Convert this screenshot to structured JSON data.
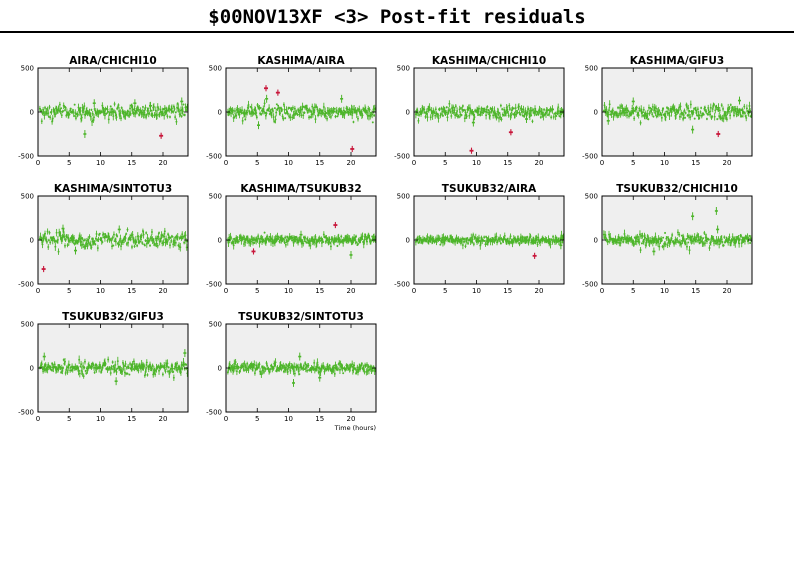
{
  "page": {
    "title": "$00NOV13XF <3> Post-fit residuals",
    "xaxis_label": "Time (hours)"
  },
  "colors": {
    "points": "#4db52a",
    "outliers": "#c8163a",
    "panel_bg": "#efefef",
    "frame": "#000000"
  },
  "chart_data": [
    {
      "type": "scatter",
      "title": "AIRA/CHICHI10",
      "xlim": [
        0,
        24
      ],
      "ylim": [
        -500,
        500
      ],
      "xticks": [
        0,
        5,
        10,
        15,
        20
      ],
      "yticks": [
        -500,
        0,
        500
      ],
      "noise_sigma": 40,
      "bursts": [
        {
          "x": 7.5,
          "y": -250
        },
        {
          "x": 9,
          "y": 100
        },
        {
          "x": 15.5,
          "y": 100
        },
        {
          "x": 18,
          "y": 70
        },
        {
          "x": 23,
          "y": 120
        }
      ],
      "outliers": [
        {
          "x": 19.7,
          "y": -270
        }
      ]
    },
    {
      "type": "scatter",
      "title": "KASHIMA/AIRA",
      "xlim": [
        0,
        24
      ],
      "ylim": [
        -500,
        500
      ],
      "xticks": [
        0,
        5,
        10,
        15,
        20
      ],
      "yticks": [
        -500,
        0,
        500
      ],
      "noise_sigma": 35,
      "bursts": [
        {
          "x": 5.2,
          "y": -150
        },
        {
          "x": 6.5,
          "y": 150
        },
        {
          "x": 18.5,
          "y": 150
        }
      ],
      "outliers": [
        {
          "x": 6.4,
          "y": 270
        },
        {
          "x": 8.3,
          "y": 220
        },
        {
          "x": 20.2,
          "y": -420
        }
      ]
    },
    {
      "type": "scatter",
      "title": "KASHIMA/CHICHI10",
      "xlim": [
        0,
        24
      ],
      "ylim": [
        -500,
        500
      ],
      "xticks": [
        0,
        5,
        10,
        15,
        20
      ],
      "yticks": [
        -500,
        0,
        500
      ],
      "noise_sigma": 35,
      "bursts": [
        {
          "x": 9.5,
          "y": -120
        },
        {
          "x": 18,
          "y": -80
        }
      ],
      "outliers": [
        {
          "x": 9.2,
          "y": -440
        },
        {
          "x": 15.5,
          "y": -230
        }
      ]
    },
    {
      "type": "scatter",
      "title": "KASHIMA/GIFU3",
      "xlim": [
        0,
        24
      ],
      "ylim": [
        -500,
        500
      ],
      "xticks": [
        0,
        5,
        10,
        15,
        20
      ],
      "yticks": [
        -500,
        0,
        500
      ],
      "noise_sigma": 40,
      "bursts": [
        {
          "x": 1,
          "y": -100
        },
        {
          "x": 5,
          "y": 120
        },
        {
          "x": 14.5,
          "y": -200
        },
        {
          "x": 22,
          "y": 130
        }
      ],
      "outliers": [
        {
          "x": 18.6,
          "y": -250
        }
      ]
    },
    {
      "type": "scatter",
      "title": "KASHIMA/SINTOTU3",
      "xlim": [
        0,
        24
      ],
      "ylim": [
        -500,
        500
      ],
      "xticks": [
        0,
        5,
        10,
        15,
        20
      ],
      "yticks": [
        -500,
        0,
        500
      ],
      "noise_sigma": 45,
      "bursts": [
        {
          "x": 4,
          "y": 130
        },
        {
          "x": 6,
          "y": -120
        },
        {
          "x": 13,
          "y": 120
        }
      ],
      "outliers": [
        {
          "x": 0.9,
          "y": -330
        }
      ]
    },
    {
      "type": "scatter",
      "title": "KASHIMA/TSUKUB32",
      "xlim": [
        0,
        24
      ],
      "ylim": [
        -500,
        500
      ],
      "xticks": [
        0,
        5,
        10,
        15,
        20
      ],
      "yticks": [
        -500,
        0,
        500
      ],
      "noise_sigma": 25,
      "bursts": [
        {
          "x": 12,
          "y": 60
        },
        {
          "x": 20,
          "y": -170
        }
      ],
      "outliers": [
        {
          "x": 4.4,
          "y": -130
        },
        {
          "x": 17.5,
          "y": 170
        }
      ]
    },
    {
      "type": "scatter",
      "title": "TSUKUB32/AIRA",
      "xlim": [
        0,
        24
      ],
      "ylim": [
        -500,
        500
      ],
      "xticks": [
        0,
        5,
        10,
        15,
        20
      ],
      "yticks": [
        -500,
        0,
        500
      ],
      "noise_sigma": 20,
      "bursts": [
        {
          "x": 23.5,
          "y": -60
        }
      ],
      "outliers": [
        {
          "x": 19.3,
          "y": -180
        }
      ]
    },
    {
      "type": "scatter",
      "title": "TSUKUB32/CHICHI10",
      "xlim": [
        0,
        24
      ],
      "ylim": [
        -500,
        500
      ],
      "xticks": [
        0,
        5,
        10,
        15,
        20
      ],
      "yticks": [
        -500,
        0,
        500
      ],
      "noise_sigma": 30,
      "bursts": [
        {
          "x": 8.3,
          "y": -130
        },
        {
          "x": 14.5,
          "y": 270
        },
        {
          "x": 18.3,
          "y": 330
        },
        {
          "x": 18.5,
          "y": 120
        }
      ],
      "outliers": []
    },
    {
      "type": "scatter",
      "title": "TSUKUB32/GIFU3",
      "xlim": [
        0,
        24
      ],
      "ylim": [
        -500,
        500
      ],
      "xticks": [
        0,
        5,
        10,
        15,
        20
      ],
      "yticks": [
        -500,
        0,
        500
      ],
      "noise_sigma": 40,
      "bursts": [
        {
          "x": 1,
          "y": 130
        },
        {
          "x": 12.5,
          "y": -150
        },
        {
          "x": 23.5,
          "y": 170
        }
      ],
      "outliers": []
    },
    {
      "type": "scatter",
      "title": "TSUKUB32/SINTOTU3",
      "xlim": [
        0,
        24
      ],
      "ylim": [
        -500,
        500
      ],
      "xticks": [
        0,
        5,
        10,
        15,
        20
      ],
      "yticks": [
        -500,
        0,
        500
      ],
      "noise_sigma": 30,
      "bursts": [
        {
          "x": 10.8,
          "y": -170
        },
        {
          "x": 11.8,
          "y": 130
        },
        {
          "x": 15,
          "y": -110
        }
      ],
      "outliers": []
    }
  ]
}
